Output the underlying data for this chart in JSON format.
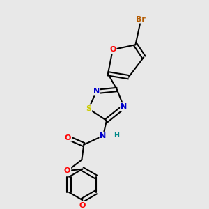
{
  "bg": "#e8e8e8",
  "bond_lw": 1.5,
  "atom_colors": {
    "Br": "#b35a00",
    "O": "#ff0000",
    "N": "#0000cc",
    "S": "#cccc00",
    "H": "#008888"
  },
  "fs": 8.0,
  "figsize": [
    3.0,
    3.0
  ],
  "dpi": 100,
  "xlim": [
    0,
    10
  ],
  "ylim": [
    0,
    10
  ]
}
